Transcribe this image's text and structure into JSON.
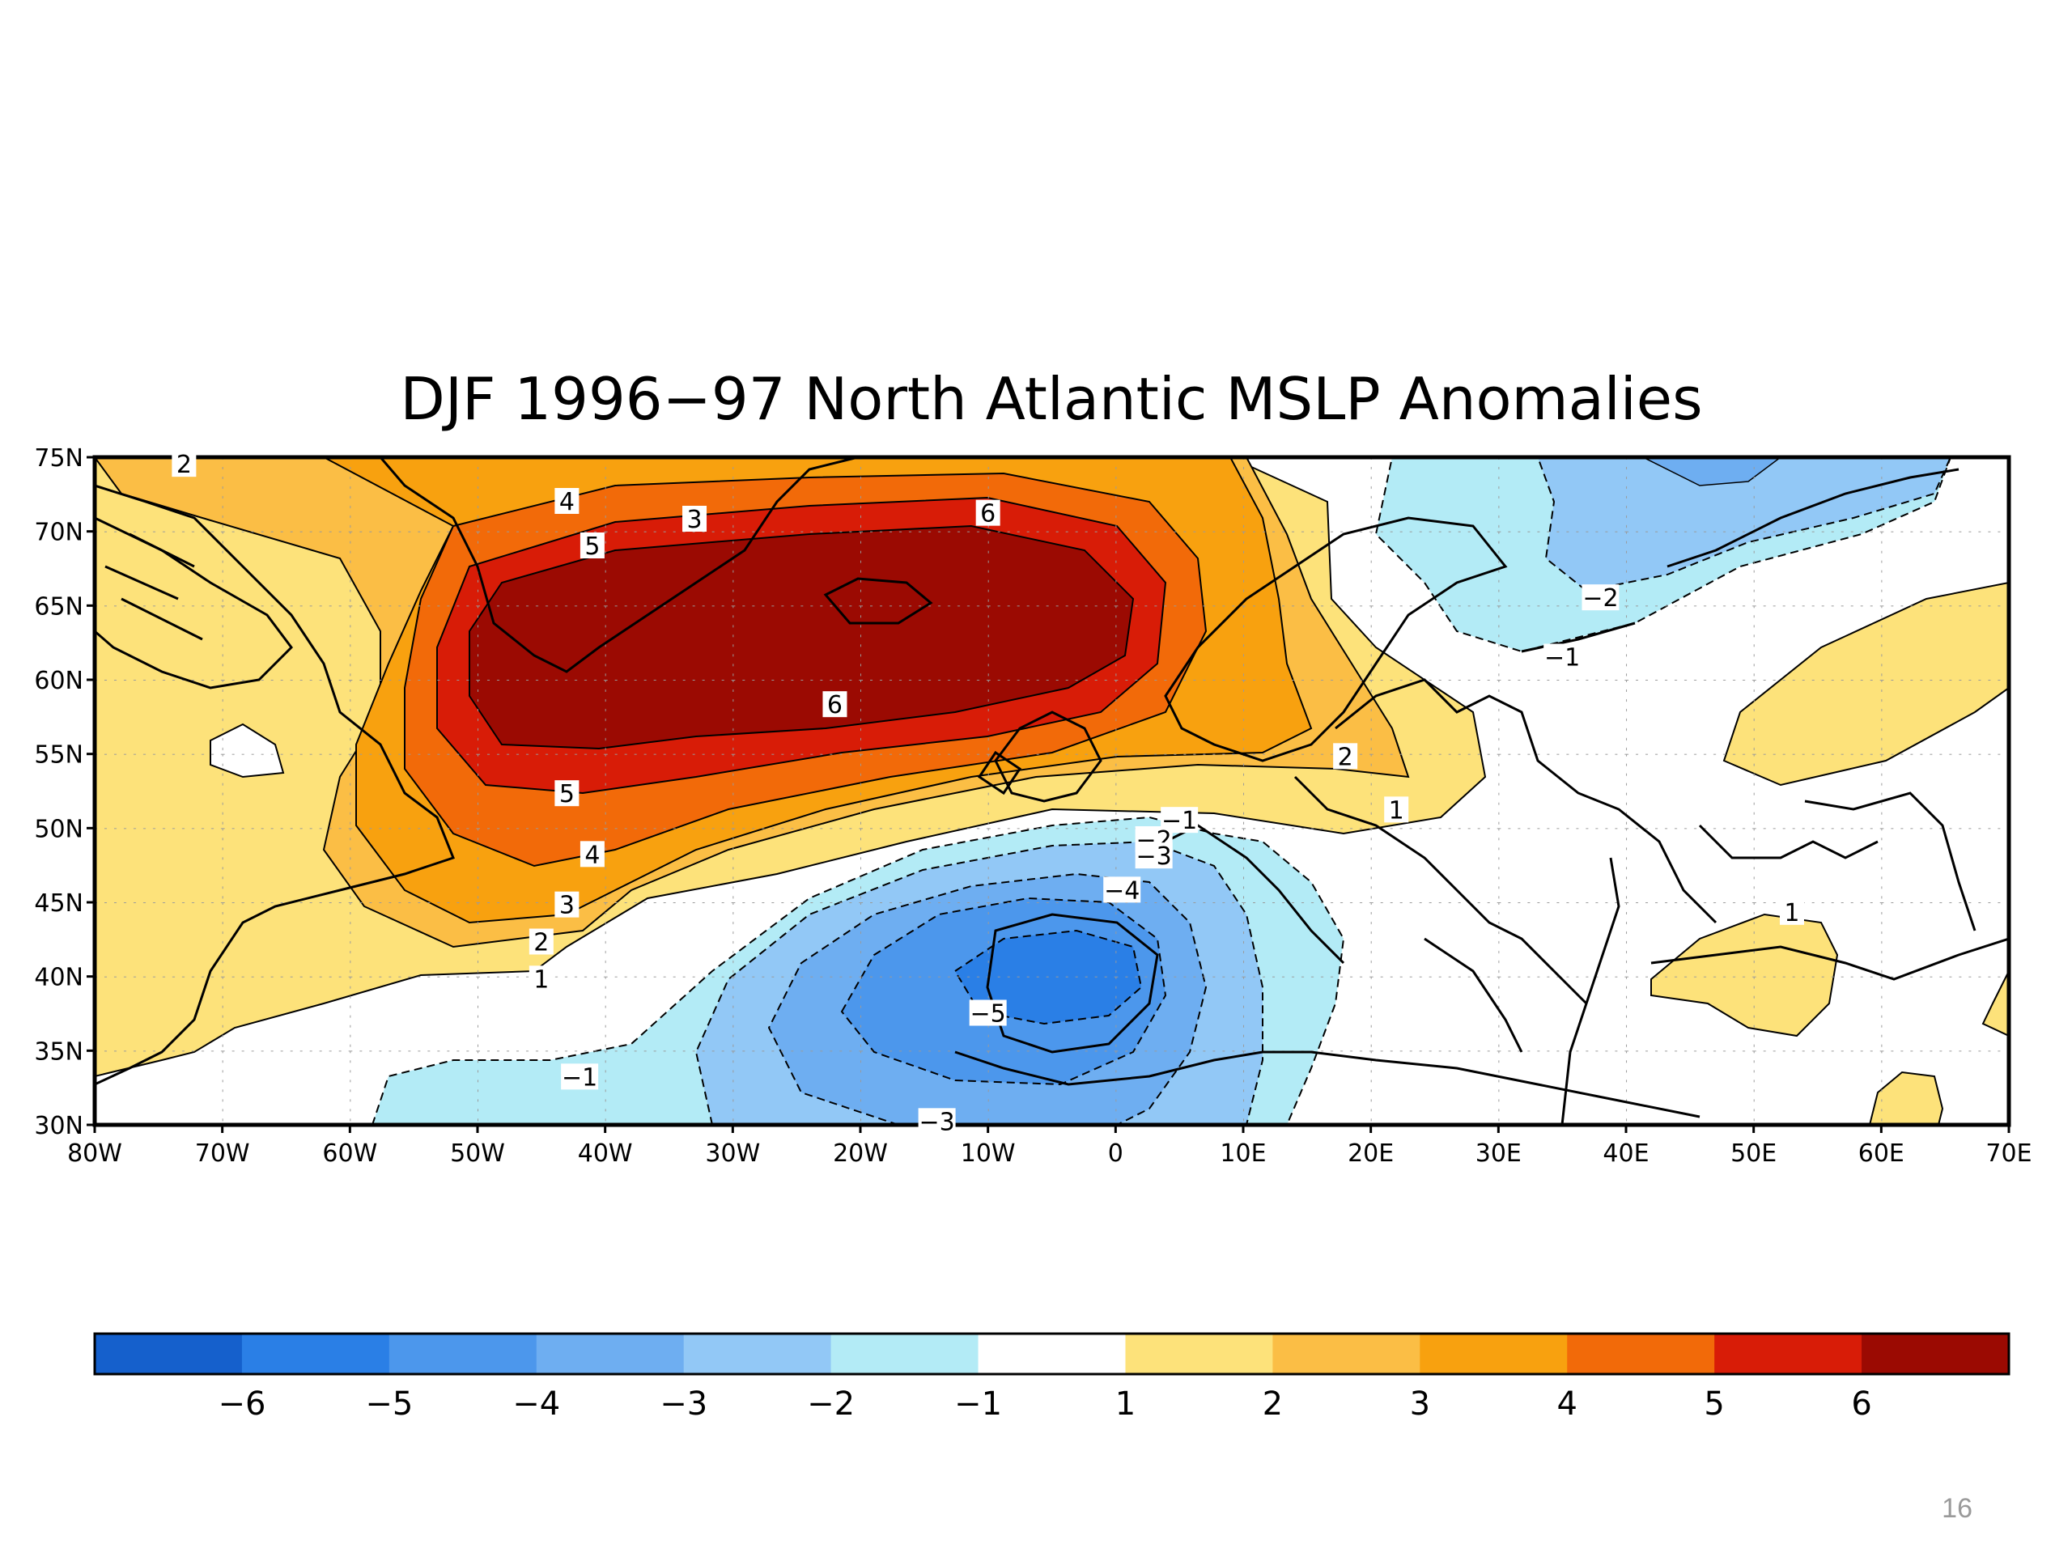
{
  "slide": {
    "title": "DJF 1996−97 North Atlantic MSLP Anomalies",
    "page_number": "16"
  },
  "map": {
    "lat_labels": [
      "75N",
      "70N",
      "65N",
      "60N",
      "55N",
      "50N",
      "45N",
      "40N",
      "35N",
      "30N"
    ],
    "lon_labels": [
      "80W",
      "70W",
      "60W",
      "50W",
      "40W",
      "30W",
      "20W",
      "10W",
      "0",
      "10E",
      "20E",
      "30E",
      "40E",
      "50E",
      "60E",
      "70E"
    ],
    "lat_range": [
      30,
      75
    ],
    "lon_range": [
      -80,
      70
    ],
    "contour_labels": [
      {
        "text": "2",
        "lon": -73,
        "lat": 74.5
      },
      {
        "text": "4",
        "lon": -43,
        "lat": 72
      },
      {
        "text": "3",
        "lon": -33,
        "lat": 70.8
      },
      {
        "text": "6",
        "lon": -10,
        "lat": 71.2
      },
      {
        "text": "5",
        "lon": -41,
        "lat": 69
      },
      {
        "text": "6",
        "lon": -22,
        "lat": 58.3
      },
      {
        "text": "5",
        "lon": -43,
        "lat": 52.3
      },
      {
        "text": "4",
        "lon": -41,
        "lat": 48.2
      },
      {
        "text": "3",
        "lon": -43,
        "lat": 44.8
      },
      {
        "text": "2",
        "lon": -45,
        "lat": 42.3
      },
      {
        "text": "1",
        "lon": -45,
        "lat": 39.8
      },
      {
        "text": "−1",
        "lon": -42,
        "lat": 33.2
      },
      {
        "text": "2",
        "lon": 18,
        "lat": 54.8
      },
      {
        "text": "1",
        "lon": 22,
        "lat": 51.2
      },
      {
        "text": "−1",
        "lon": 5,
        "lat": 50.5
      },
      {
        "text": "−2",
        "lon": 3,
        "lat": 49.2
      },
      {
        "text": "−3",
        "lon": 3,
        "lat": 48.1
      },
      {
        "text": "−4",
        "lon": 0.5,
        "lat": 45.8
      },
      {
        "text": "−5",
        "lon": -10,
        "lat": 37.5
      },
      {
        "text": "−3",
        "lon": -14,
        "lat": 30.2
      },
      {
        "text": "−2",
        "lon": 38,
        "lat": 65.5
      },
      {
        "text": "−1",
        "lon": 35,
        "lat": 61.5
      },
      {
        "text": "1",
        "lon": 53,
        "lat": 44.3
      }
    ]
  },
  "legend": {
    "labels": [
      "−6",
      "−5",
      "−4",
      "−3",
      "−2",
      "−1",
      "1",
      "2",
      "3",
      "4",
      "5",
      "6"
    ],
    "colors": [
      "#1560cc",
      "#2a7fe6",
      "#4c97ec",
      "#6eaef1",
      "#92c8f6",
      "#b3ebf6",
      "#ffffff",
      "#fde27a",
      "#fbbe45",
      "#f8a10f",
      "#f26a09",
      "#d81c07",
      "#9b0a02"
    ]
  }
}
